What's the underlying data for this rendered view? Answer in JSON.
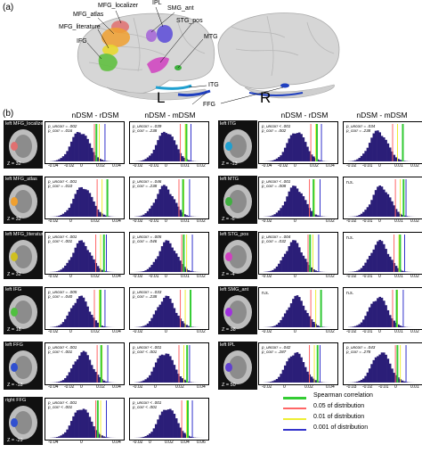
{
  "panel_a_label": "(a)",
  "panel_b_label": "(b)",
  "brain_labels": {
    "mfg_localizer": "MFG_localizer",
    "ipl": "IPL",
    "smg_ant": "SMG_ant",
    "mfg_atlas": "MFG_atlas",
    "mfg_literature": "MFG_literature",
    "stg_pos": "STG_pos",
    "ifg": "IFG",
    "mtg": "MTG",
    "itg": "ITG",
    "ffg": "FFG",
    "left": "L",
    "right": "R"
  },
  "column_headers": {
    "left_a": "nDSM - rDSM",
    "left_b": "nDSM - mDSM",
    "right_a": "nDSM - rDSM",
    "right_b": "nDSM - mDSM"
  },
  "left_column": [
    {
      "roi": "left MFG_localizer",
      "z": "Z = 32",
      "color": "#e07070",
      "a": {
        "stat1": "p_uncorr = .002",
        "stat2": "p_corr = .016",
        "ticks": [
          "-0.04",
          "-0.02",
          "0",
          "0.02",
          "0.04"
        ]
      },
      "b": {
        "stat1": "p_uncorr = .039",
        "stat2": "p_corr = .238",
        "ticks": [
          "-0.02",
          "-0.01",
          "0",
          "0.01",
          "0.02"
        ]
      }
    },
    {
      "roi": "left MFG_atlas",
      "z": "Z = 32",
      "color": "#f0a030",
      "a": {
        "stat1": "p_uncorr < .001",
        "stat2": "p_corr = .010",
        "ticks": [
          "-0.02",
          "0",
          "0.02",
          "0.04"
        ]
      },
      "b": {
        "stat1": "p_uncorr = .046",
        "stat2": "p_corr = .238",
        "ticks": [
          "-0.02",
          "-0.01",
          "0",
          "0.01",
          "0.02"
        ]
      }
    },
    {
      "roi": "left MFG_literature",
      "z": "Z = 32",
      "color": "#d0c020",
      "a": {
        "stat1": "p_uncorr < .001",
        "stat2": "p_corr < .001",
        "ticks": [
          "-0.02",
          "0",
          "0.02",
          "0.04"
        ]
      },
      "b": {
        "stat1": "p_uncorr = .005",
        "stat2": "p_corr = .046",
        "ticks": [
          "-0.02",
          "-0.01",
          "0",
          "0.01",
          "0.02"
        ]
      }
    },
    {
      "roi": "left IFG",
      "z": "Z = 18",
      "color": "#50c040",
      "a": {
        "stat1": "p_uncorr = .005",
        "stat2": "p_corr = .040",
        "ticks": [
          "-0.02",
          "0",
          "0.02",
          "0.04"
        ]
      },
      "b": {
        "stat1": "p_uncorr = .033",
        "stat2": "p_corr = .238",
        "ticks": [
          "-0.02",
          "0",
          "0.02"
        ]
      }
    },
    {
      "roi": "left FFG",
      "z": "Z = -18",
      "color": "#3050d0",
      "a": {
        "stat1": "p_uncorr < .001",
        "stat2": "p_corr < .001",
        "ticks": [
          "-0.04",
          "-0.02",
          "0",
          "0.02",
          "0.04"
        ]
      },
      "b": {
        "stat1": "p_uncorr < .001",
        "stat2": "p_corr < .001",
        "ticks": [
          "-0.02",
          "0",
          "0.02",
          "0.04"
        ]
      }
    },
    {
      "roi": "right FFG",
      "z": "Z = -29",
      "color": "#3050d0",
      "a": {
        "stat1": "p_uncorr < .001",
        "stat2": "p_corr < .001",
        "ticks": [
          "-0.04",
          "0",
          "0.04"
        ]
      },
      "b": {
        "stat1": "p_uncorr < .001",
        "stat2": "p_corr < .001",
        "ticks": [
          "-0.02",
          "0",
          "0.02",
          "0.04",
          "0.06"
        ]
      }
    }
  ],
  "right_column": [
    {
      "roi": "left ITG",
      "z": "Z = -13",
      "color": "#20a0d0",
      "a": {
        "stat1": "p_uncorr < .001",
        "stat2": "p_corr = .002",
        "ticks": [
          "-0.04",
          "-0.02",
          "0",
          "0.02",
          "0.04"
        ]
      },
      "b": {
        "stat1": "p_uncorr = .034",
        "stat2": "p_corr = .238",
        "ticks": [
          "-0.02",
          "-0.01",
          "0",
          "0.01",
          "0.02"
        ]
      }
    },
    {
      "roi": "left MTG",
      "z": "Z = -6",
      "color": "#40b040",
      "a": {
        "stat1": "p_uncorr < .001",
        "stat2": "p_corr = .008",
        "ticks": [
          "-0.02",
          "0",
          "0.02"
        ]
      },
      "b": {
        "na": "n.s.",
        "ticks": [
          "-0.02",
          "-0.01",
          "0",
          "0.01",
          "0.02"
        ]
      }
    },
    {
      "roi": "left STG_pos",
      "z": "Z = -4",
      "color": "#d040c0",
      "a": {
        "stat1": "p_uncorr = .004",
        "stat2": "p_corr = .032",
        "ticks": [
          "-0.02",
          "0",
          "0.02"
        ]
      },
      "b": {
        "na": "n.s.",
        "ticks": [
          "-0.02",
          "-0.01",
          "0",
          "0.01",
          "0.02"
        ]
      }
    },
    {
      "roi": "left SMG_ant",
      "z": "Z = 38",
      "color": "#a030e0",
      "a": {
        "na": "n.s.",
        "ticks": [
          "-0.02",
          "0",
          "0.02"
        ]
      },
      "b": {
        "na": "n.s.",
        "ticks": [
          "-0.02",
          "-0.01",
          "0",
          "0.01",
          "0.02"
        ]
      }
    },
    {
      "roi": "left IPL",
      "z": "Z = 50",
      "color": "#6040d0",
      "a": {
        "stat1": "p_uncorr = .042",
        "stat2": "p_corr = .287",
        "ticks": [
          "-0.02",
          "0",
          "0.02",
          "0.04"
        ]
      },
      "b": {
        "stat1": "p_uncorr = .043",
        "stat2": "p_corr = .278",
        "ticks": [
          "-0.03",
          "-0.02",
          "-0.01",
          "0",
          "0.01"
        ]
      }
    }
  ],
  "legend": {
    "items": [
      {
        "label": "Spearman correlation",
        "color": "#33cc33"
      },
      {
        "label": "0.05 of distribution",
        "color": "#ff6666"
      },
      {
        "label": "0.01 of distribution",
        "color": "#eeee33"
      },
      {
        "label": "0.001 of distribution",
        "color": "#3333cc"
      }
    ]
  },
  "colors": {
    "histogram_fill": "#2b1e78",
    "brain_gray": "#d8d8d8",
    "thumb_bg": "#111111"
  }
}
